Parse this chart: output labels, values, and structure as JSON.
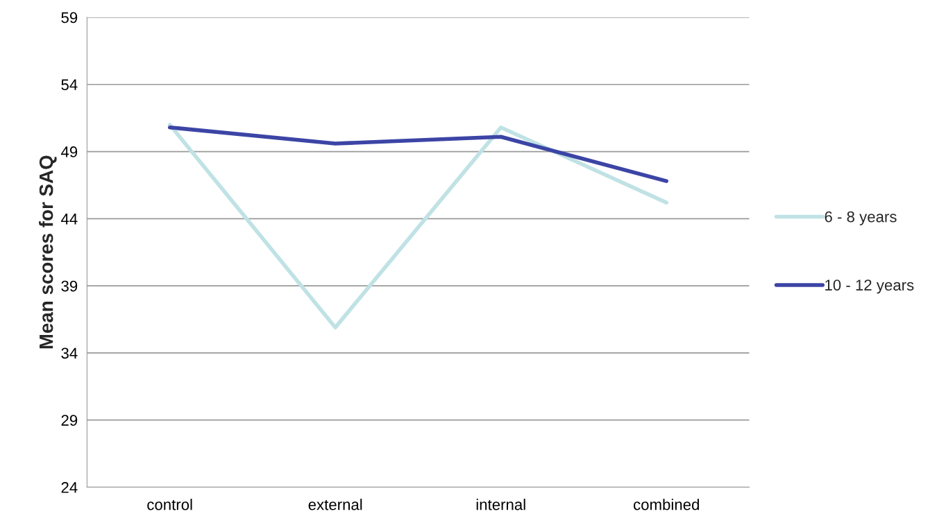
{
  "chart_data": {
    "type": "line",
    "ylabel": "Mean scores for SAQ",
    "categories": [
      "control",
      "external",
      "internal",
      "combined"
    ],
    "series": [
      {
        "name": "6 - 8 years",
        "color": "#c0e2e5",
        "values": [
          51.0,
          35.9,
          50.8,
          45.2
        ]
      },
      {
        "name": "10 - 12 years",
        "color": "#3c45a5",
        "values": [
          50.8,
          49.6,
          50.1,
          46.8
        ]
      }
    ],
    "ylim": [
      24,
      59
    ],
    "yticks": [
      24,
      29,
      34,
      39,
      44,
      49,
      54,
      59
    ],
    "grid": "y",
    "legend": "right",
    "marker": "none",
    "line_style": "solid"
  }
}
